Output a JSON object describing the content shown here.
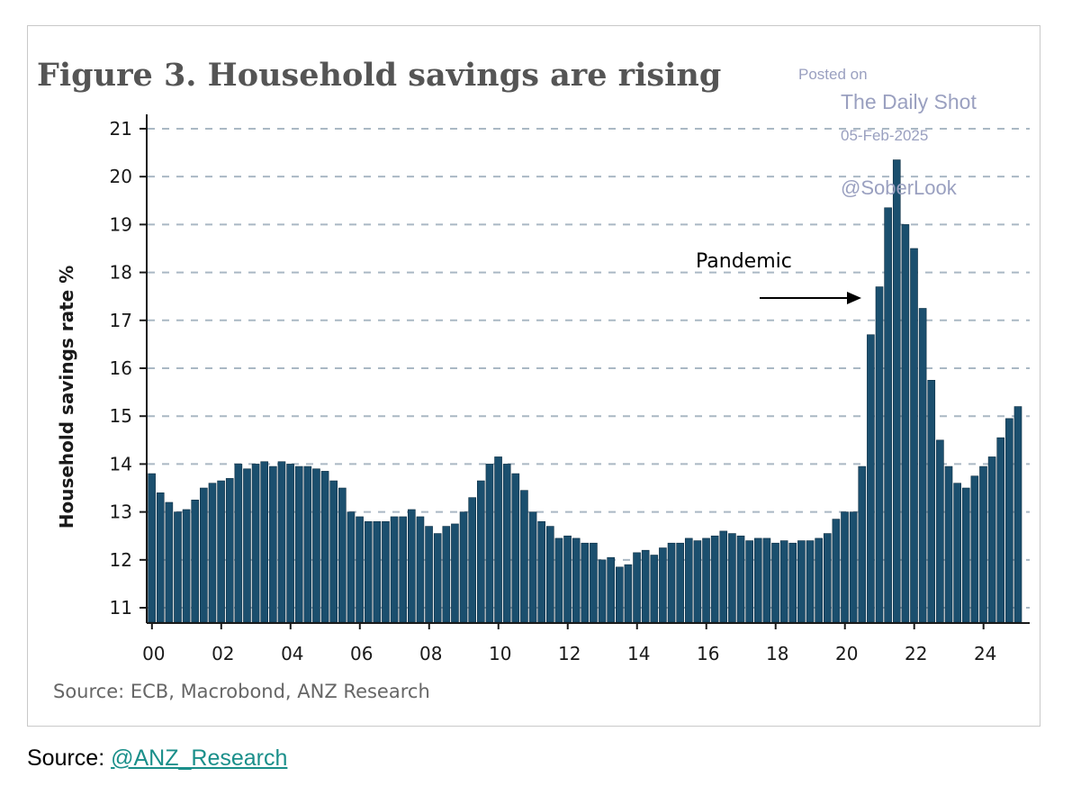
{
  "chart_data": {
    "type": "bar",
    "title": "Figure 3. Household savings are rising",
    "ylabel": "Household savings rate %",
    "xlabel": "",
    "ylim": [
      10.7,
      21.3
    ],
    "yticks": [
      11,
      12,
      13,
      14,
      15,
      16,
      17,
      18,
      19,
      20,
      21
    ],
    "xticks": [
      "00",
      "02",
      "04",
      "06",
      "08",
      "10",
      "12",
      "14",
      "16",
      "18",
      "20",
      "22",
      "24"
    ],
    "x_start_year": 2000,
    "frequency": "quarterly",
    "grid": true,
    "values": [
      13.8,
      13.4,
      13.2,
      13.0,
      13.05,
      13.25,
      13.5,
      13.6,
      13.65,
      13.7,
      14.0,
      13.9,
      14.0,
      14.05,
      13.95,
      14.05,
      14.0,
      13.95,
      13.95,
      13.9,
      13.85,
      13.65,
      13.5,
      13.0,
      12.9,
      12.8,
      12.8,
      12.8,
      12.9,
      12.9,
      13.05,
      12.9,
      12.7,
      12.55,
      12.7,
      12.75,
      13.0,
      13.3,
      13.65,
      14.0,
      14.15,
      14.0,
      13.8,
      13.45,
      13.0,
      12.8,
      12.7,
      12.45,
      12.5,
      12.45,
      12.35,
      12.35,
      12.0,
      12.05,
      11.85,
      11.9,
      12.15,
      12.2,
      12.1,
      12.25,
      12.35,
      12.35,
      12.45,
      12.4,
      12.45,
      12.5,
      12.6,
      12.55,
      12.5,
      12.4,
      12.45,
      12.45,
      12.35,
      12.4,
      12.35,
      12.4,
      12.4,
      12.45,
      12.55,
      12.85,
      13.0,
      13.0,
      13.95,
      16.7,
      17.7,
      19.35,
      20.35,
      19.0,
      18.5,
      17.25,
      15.75,
      14.5,
      13.95,
      13.6,
      13.5,
      13.75,
      13.95,
      14.15,
      14.55,
      14.95,
      15.2
    ],
    "source_note": "Source: ECB, Macrobond, ANZ Research",
    "annotation": "Pandemic",
    "colors": {
      "bar": "#1b4f6e",
      "bar_edge": "#0e2f44",
      "grid": "#aab8c4",
      "axis": "#1a1a1a",
      "title": "#555555",
      "watermark": "#9aa0c0"
    }
  },
  "watermark": {
    "posted": "Posted on",
    "brand": "The Daily Shot",
    "date": "05-Feb-2025",
    "handle": "@SoberLook"
  },
  "caption": {
    "prefix": "Source: ",
    "link": "@ANZ_Research"
  }
}
